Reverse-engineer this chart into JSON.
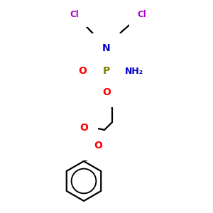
{
  "atom_colors": {
    "Cl": "#aa00cc",
    "N": "#0000cc",
    "P": "#808000",
    "O": "#ff0000",
    "NH2": "#0000cc",
    "C": "#000000"
  },
  "bond_color": "#000000",
  "bond_width": 1.6
}
